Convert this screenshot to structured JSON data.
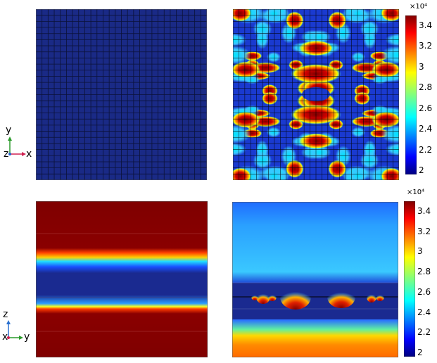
{
  "colorbar_top": {
    "multiplier": "×10⁴",
    "ticks": [
      "3.4",
      "3.2",
      "3",
      "2.8",
      "2.6",
      "2.4",
      "2.2",
      "2"
    ]
  },
  "colorbar_bottom": {
    "multiplier": "×10⁴",
    "ticks": [
      "3.4",
      "3.2",
      "3",
      "2.8",
      "2.6",
      "2.4",
      "2.2",
      "2"
    ]
  },
  "triad_top": {
    "vertical": "y",
    "horizontal": "x",
    "out": "z"
  },
  "triad_bottom": {
    "vertical": "z",
    "horizontal": "y",
    "out": "x"
  },
  "colors": {
    "mesh_fill": "#1a2a86",
    "mesh_line": "#0b1238",
    "jet_low": "#00007f",
    "jet_high": "#7f0000"
  }
}
